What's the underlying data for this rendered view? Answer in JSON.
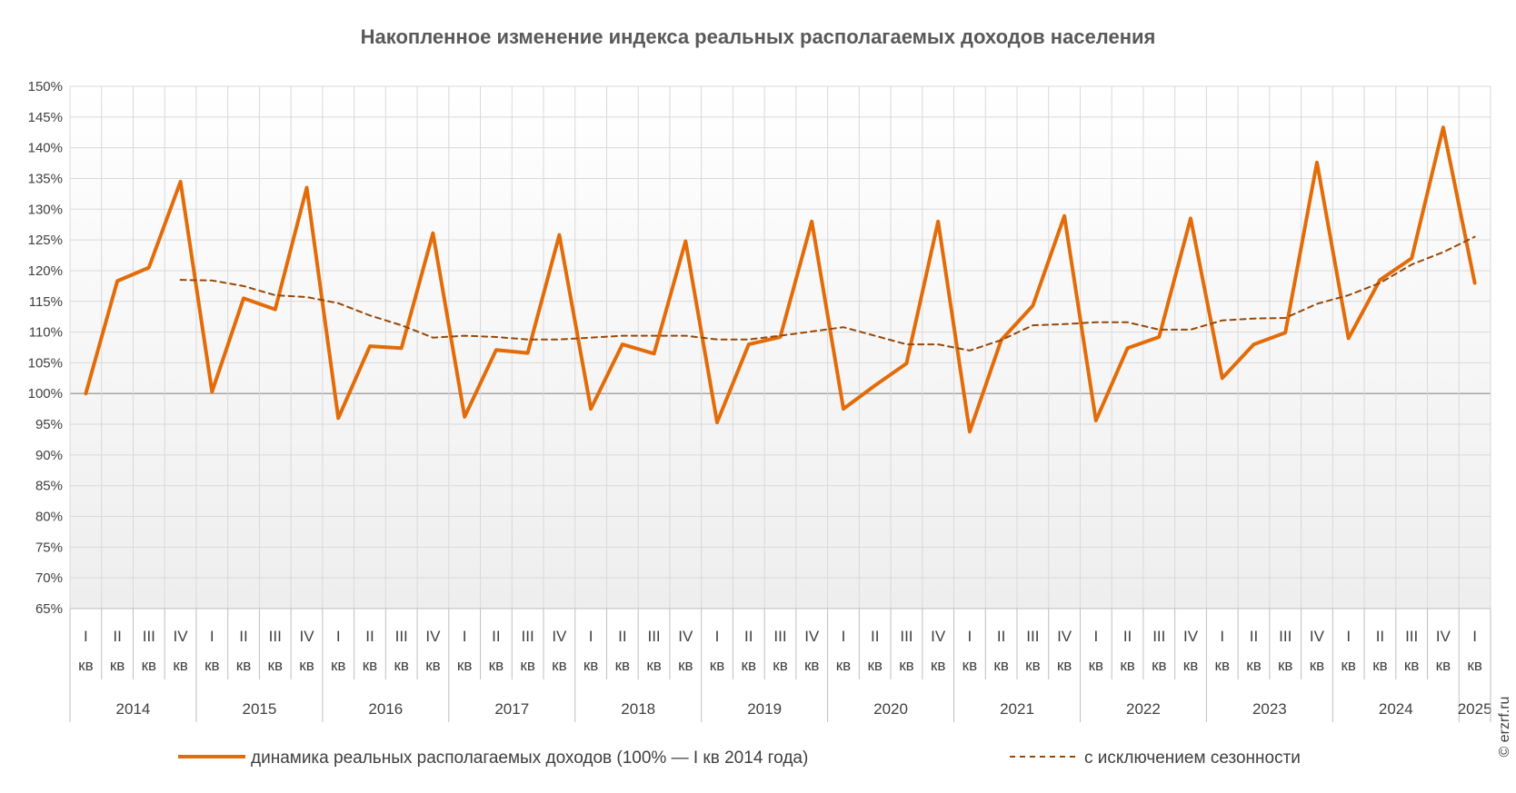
{
  "chart_data": {
    "type": "line",
    "title": "Накопленное изменение индекса реальных располагаемых доходов населения",
    "xlabel": "",
    "ylabel": "",
    "ylim": [
      0.65,
      1.5
    ],
    "y_tick_step": 0.05,
    "y_format": "percent",
    "grid": true,
    "legend_position": "bottom",
    "quarter_labels": [
      "I",
      "II",
      "III",
      "IV",
      "I",
      "II",
      "III",
      "IV",
      "I",
      "II",
      "III",
      "IV",
      "I",
      "II",
      "III",
      "IV",
      "I",
      "II",
      "III",
      "IV",
      "I",
      "II",
      "III",
      "IV",
      "I",
      "II",
      "III",
      "IV",
      "I",
      "II",
      "III",
      "IV",
      "I",
      "II",
      "III",
      "IV",
      "I",
      "II",
      "III",
      "IV",
      "I",
      "II",
      "III",
      "IV",
      "I"
    ],
    "quarter_unit": "кв",
    "years": [
      {
        "label": "2014",
        "quarters": 4
      },
      {
        "label": "2015",
        "quarters": 4
      },
      {
        "label": "2016",
        "quarters": 4
      },
      {
        "label": "2017",
        "quarters": 4
      },
      {
        "label": "2018",
        "quarters": 4
      },
      {
        "label": "2019",
        "quarters": 4
      },
      {
        "label": "2020",
        "quarters": 4
      },
      {
        "label": "2021",
        "quarters": 4
      },
      {
        "label": "2022",
        "quarters": 4
      },
      {
        "label": "2023",
        "quarters": 4
      },
      {
        "label": "2024",
        "quarters": 4
      },
      {
        "label": "2025",
        "quarters": 1
      }
    ],
    "series": [
      {
        "name": "динамика реальных располагаемых доходов (100% — I кв 2014 года)",
        "color": "#E36C09",
        "style": "solid",
        "values": [
          1.0,
          1.183,
          1.205,
          1.345,
          1.003,
          1.155,
          1.137,
          1.335,
          0.96,
          1.077,
          1.074,
          1.261,
          0.962,
          1.071,
          1.066,
          1.258,
          0.975,
          1.08,
          1.065,
          1.248,
          0.953,
          1.08,
          1.092,
          1.28,
          0.975,
          1.013,
          1.049,
          1.28,
          0.938,
          1.087,
          1.143,
          1.289,
          0.956,
          1.074,
          1.092,
          1.285,
          1.025,
          1.08,
          1.099,
          1.376,
          1.09,
          1.185,
          1.22,
          1.433,
          1.18
        ]
      },
      {
        "name": "с исключением сезонности",
        "color": "#984807",
        "style": "dashed",
        "values": [
          null,
          null,
          null,
          1.185,
          1.184,
          1.175,
          1.16,
          1.157,
          1.147,
          1.127,
          1.111,
          1.091,
          1.094,
          1.092,
          1.088,
          1.088,
          1.091,
          1.094,
          1.094,
          1.094,
          1.088,
          1.088,
          1.094,
          1.101,
          1.108,
          1.094,
          1.08,
          1.08,
          1.07,
          1.087,
          1.111,
          1.113,
          1.116,
          1.116,
          1.104,
          1.104,
          1.119,
          1.122,
          1.123,
          1.146,
          1.16,
          1.18,
          1.21,
          1.23,
          1.255
        ]
      }
    ]
  },
  "copyright": "© erzrf.ru"
}
